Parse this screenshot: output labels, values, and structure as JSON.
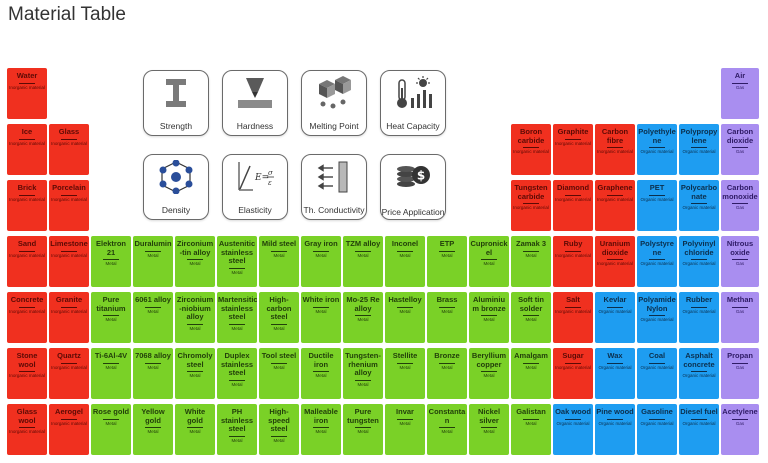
{
  "title": "Material Table",
  "colors": {
    "ceramic": "#f0301f",
    "metal": "#7ad127",
    "organic": "#1e9df1",
    "gas": "#a98ef0"
  },
  "properties": [
    {
      "label": "Strength",
      "icon": "i-beam-icon"
    },
    {
      "label": "Hardness",
      "icon": "indenter-icon"
    },
    {
      "label": "Melting Point",
      "icon": "melting-cubes-icon"
    },
    {
      "label": "Heat Capacity",
      "icon": "thermometer-sun-icon"
    },
    {
      "label": "Density",
      "icon": "crystal-lattice-icon"
    },
    {
      "label": "Elasticity",
      "icon": "stress-strain-icon"
    },
    {
      "label": "Th. Conductivity",
      "icon": "heat-flow-icon"
    },
    {
      "label": "Price Application",
      "icon": "coins-icon"
    }
  ],
  "materials": [
    {
      "name": "Water",
      "cat": "Inorganic material",
      "color": "red"
    },
    {
      "name": "Ice",
      "cat": "Inorganic material",
      "color": "red"
    },
    {
      "name": "Glass",
      "cat": "Inorganic material",
      "color": "red"
    },
    {
      "name": "Brick",
      "cat": "Inorganic material",
      "color": "red"
    },
    {
      "name": "Porcelain",
      "cat": "Inorganic material",
      "color": "red"
    },
    {
      "name": "Sand",
      "cat": "Inorganic material",
      "color": "red"
    },
    {
      "name": "Limestone",
      "cat": "Inorganic material",
      "color": "red"
    },
    {
      "name": "Concrete",
      "cat": "Inorganic material",
      "color": "red"
    },
    {
      "name": "Granite",
      "cat": "Inorganic material",
      "color": "red"
    },
    {
      "name": "Stone wool",
      "cat": "Inorganic material",
      "color": "red"
    },
    {
      "name": "Quartz",
      "cat": "Inorganic material",
      "color": "red"
    },
    {
      "name": "Glass wool",
      "cat": "Inorganic material",
      "color": "red"
    },
    {
      "name": "Aerogel",
      "cat": "Inorganic material",
      "color": "red"
    },
    {
      "name": "Elektron 21",
      "cat": "Metal",
      "color": "green"
    },
    {
      "name": "Duralumin",
      "cat": "Metal",
      "color": "green"
    },
    {
      "name": "Zirconium -tin alloy",
      "cat": "Metal",
      "color": "green"
    },
    {
      "name": "Austenitic stainless steel",
      "cat": "Metal",
      "color": "green"
    },
    {
      "name": "Mild steel",
      "cat": "Metal",
      "color": "green"
    },
    {
      "name": "Gray iron",
      "cat": "Metal",
      "color": "green"
    },
    {
      "name": "TZM alloy",
      "cat": "Metal",
      "color": "green"
    },
    {
      "name": "Inconel",
      "cat": "Metal",
      "color": "green"
    },
    {
      "name": "ETP",
      "cat": "Metal",
      "color": "green"
    },
    {
      "name": "Cupronick el",
      "cat": "Metal",
      "color": "green"
    },
    {
      "name": "Zamak 3",
      "cat": "Metal",
      "color": "green"
    },
    {
      "name": "Pure titanium",
      "cat": "Metal",
      "color": "green"
    },
    {
      "name": "6061 alloy",
      "cat": "Metal",
      "color": "green"
    },
    {
      "name": "Zirconium -niobium alloy",
      "cat": "Metal",
      "color": "green"
    },
    {
      "name": "Martensitic stainless steel",
      "cat": "Metal",
      "color": "green"
    },
    {
      "name": "High-carbon steel",
      "cat": "Metal",
      "color": "green"
    },
    {
      "name": "White iron",
      "cat": "Metal",
      "color": "green"
    },
    {
      "name": "Mo-25 Re alloy",
      "cat": "Metal",
      "color": "green"
    },
    {
      "name": "Hastelloy",
      "cat": "Metal",
      "color": "green"
    },
    {
      "name": "Brass",
      "cat": "Metal",
      "color": "green"
    },
    {
      "name": "Aluminiu m bronze",
      "cat": "Metal",
      "color": "green"
    },
    {
      "name": "Soft tin solder",
      "cat": "Metal",
      "color": "green"
    },
    {
      "name": "Ti-6Al-4V",
      "cat": "Metal",
      "color": "green"
    },
    {
      "name": "7068 alloy",
      "cat": "Metal",
      "color": "green"
    },
    {
      "name": "Chromoly steel",
      "cat": "Metal",
      "color": "green"
    },
    {
      "name": "Duplex stainless steel",
      "cat": "Metal",
      "color": "green"
    },
    {
      "name": "Tool steel",
      "cat": "Metal",
      "color": "green"
    },
    {
      "name": "Ductile iron",
      "cat": "Metal",
      "color": "green"
    },
    {
      "name": "Tungsten-rhenium alloy",
      "cat": "Metal",
      "color": "green"
    },
    {
      "name": "Stellite",
      "cat": "Metal",
      "color": "green"
    },
    {
      "name": "Bronze",
      "cat": "Metal",
      "color": "green"
    },
    {
      "name": "Beryllium copper",
      "cat": "Metal",
      "color": "green"
    },
    {
      "name": "Amalgam",
      "cat": "Metal",
      "color": "green"
    },
    {
      "name": "Rose gold",
      "cat": "Metal",
      "color": "green"
    },
    {
      "name": "Yellow gold",
      "cat": "Metal",
      "color": "green"
    },
    {
      "name": "White gold",
      "cat": "Metal",
      "color": "green"
    },
    {
      "name": "PH stainless steel",
      "cat": "Metal",
      "color": "green"
    },
    {
      "name": "High-speed steel",
      "cat": "Metal",
      "color": "green"
    },
    {
      "name": "Malleable iron",
      "cat": "Metal",
      "color": "green"
    },
    {
      "name": "Pure tungsten",
      "cat": "Metal",
      "color": "green"
    },
    {
      "name": "Invar",
      "cat": "Metal",
      "color": "green"
    },
    {
      "name": "Constanta n",
      "cat": "Metal",
      "color": "green"
    },
    {
      "name": "Nickel silver",
      "cat": "Metal",
      "color": "green"
    },
    {
      "name": "Galistan",
      "cat": "Metal",
      "color": "green"
    },
    {
      "name": "Boron carbide",
      "cat": "Inorganic material",
      "color": "red"
    },
    {
      "name": "Graphite",
      "cat": "Inorganic material",
      "color": "red"
    },
    {
      "name": "Carbon fibre",
      "cat": "Inorganic material",
      "color": "red"
    },
    {
      "name": "Polyethyle ne",
      "cat": "Organic material",
      "color": "blue"
    },
    {
      "name": "Polypropy lene",
      "cat": "Organic material",
      "color": "blue"
    },
    {
      "name": "Tungsten carbide",
      "cat": "Inorganic material",
      "color": "red"
    },
    {
      "name": "Diamond",
      "cat": "Inorganic material",
      "color": "red"
    },
    {
      "name": "Graphene",
      "cat": "Inorganic material",
      "color": "red"
    },
    {
      "name": "PET",
      "cat": "Organic material",
      "color": "blue"
    },
    {
      "name": "Polycarbo nate",
      "cat": "Organic material",
      "color": "blue"
    },
    {
      "name": "Ruby",
      "cat": "Inorganic material",
      "color": "red"
    },
    {
      "name": "Uranium dioxide",
      "cat": "Inorganic material",
      "color": "red"
    },
    {
      "name": "Polystyre ne",
      "cat": "Organic material",
      "color": "blue"
    },
    {
      "name": "Polyvinyl chloride",
      "cat": "Organic material",
      "color": "blue"
    },
    {
      "name": "Salt",
      "cat": "Inorganic material",
      "color": "red"
    },
    {
      "name": "Kevlar",
      "cat": "Organic material",
      "color": "blue"
    },
    {
      "name": "Polyamide Nylon",
      "cat": "Organic material",
      "color": "blue"
    },
    {
      "name": "Rubber",
      "cat": "Organic material",
      "color": "blue"
    },
    {
      "name": "Sugar",
      "cat": "Inorganic material",
      "color": "red"
    },
    {
      "name": "Wax",
      "cat": "Organic material",
      "color": "blue"
    },
    {
      "name": "Coal",
      "cat": "Organic material",
      "color": "blue"
    },
    {
      "name": "Asphalt concrete",
      "cat": "Organic material",
      "color": "blue"
    },
    {
      "name": "Oak wood",
      "cat": "Organic material",
      "color": "blue"
    },
    {
      "name": "Pine wood",
      "cat": "Organic material",
      "color": "blue"
    },
    {
      "name": "Gasoline",
      "cat": "Organic material",
      "color": "blue"
    },
    {
      "name": "Diesel fuel",
      "cat": "Organic material",
      "color": "blue"
    },
    {
      "name": "Air",
      "cat": "Gas",
      "color": "purple"
    },
    {
      "name": "Carbon dioxide",
      "cat": "Gas",
      "color": "purple"
    },
    {
      "name": "Carbon monoxide",
      "cat": "Gas",
      "color": "purple"
    },
    {
      "name": "Nitrous oxide",
      "cat": "Gas",
      "color": "purple"
    },
    {
      "name": "Methan",
      "cat": "Gas",
      "color": "purple"
    },
    {
      "name": "Propan",
      "cat": "Gas",
      "color": "purple"
    },
    {
      "name": "Acetylene",
      "cat": "Gas",
      "color": "purple"
    }
  ]
}
